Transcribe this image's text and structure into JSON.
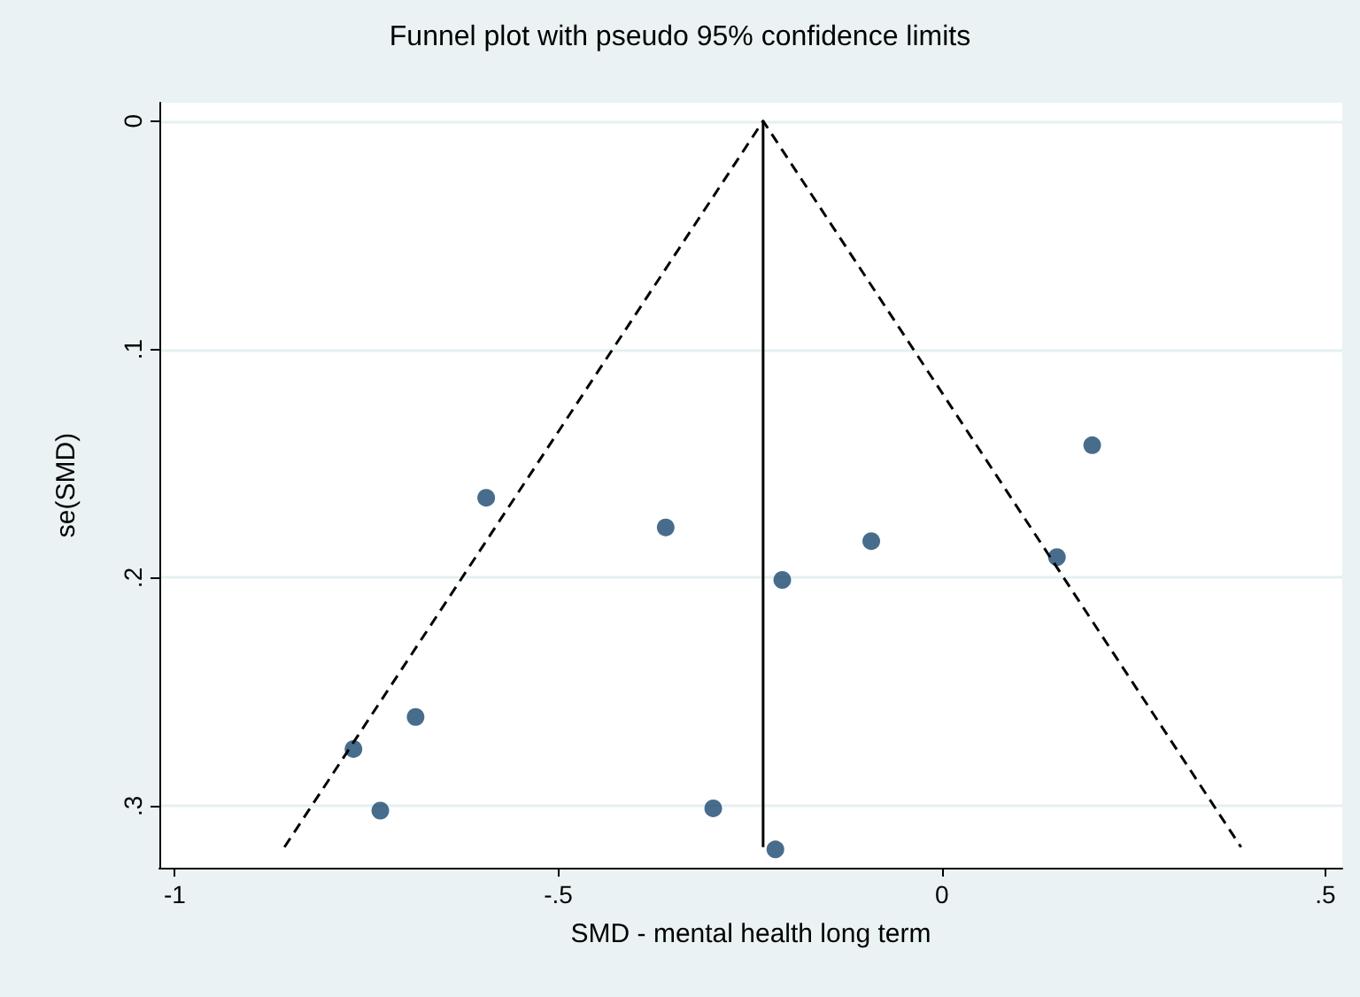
{
  "chart_data": {
    "type": "scatter",
    "title": "Funnel plot with pseudo 95% confidence limits",
    "xlabel": "SMD - mental health long term",
    "ylabel": "se(SMD)",
    "xlim": [
      -1.02,
      0.522
    ],
    "xticks": [
      -1,
      {
        "value": -0.5,
        "label": "-.5"
      },
      0,
      {
        "value": 0.5,
        "label": ".5"
      }
    ],
    "ylim": [
      0.327,
      -0.008
    ],
    "yticks": [
      0,
      {
        "value": 0.1,
        "label": ".1"
      },
      {
        "value": 0.2,
        "label": ".2"
      },
      {
        "value": 0.3,
        "label": ".3"
      }
    ],
    "grid": "y",
    "marker": "circle",
    "series": [
      {
        "color": "#1a476f",
        "x": [
          0.196,
          -0.594,
          -0.36,
          -0.092,
          0.15,
          -0.208,
          -0.686,
          -0.767,
          -0.732,
          -0.298,
          -0.217
        ],
        "values": [
          0.142,
          0.165,
          0.178,
          0.184,
          0.191,
          0.201,
          0.261,
          0.275,
          0.302,
          0.301,
          0.319
        ]
      },
      {
        "type": "line",
        "color": "#000000",
        "line_style": "solid",
        "marker": "none",
        "x": [
          -0.233,
          -0.233
        ],
        "values": [
          0,
          0.318
        ]
      },
      {
        "type": "line",
        "color": "#000000",
        "line_style": "dashed",
        "marker": "none",
        "x": [
          -0.857,
          -0.233,
          0.39
        ],
        "values": [
          0.318,
          0,
          0.318
        ]
      }
    ]
  }
}
